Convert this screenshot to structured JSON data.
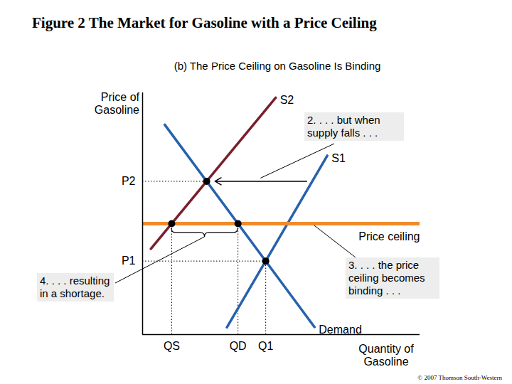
{
  "chart_data": {
    "type": "line",
    "title": "Figure 2 The Market for Gasoline with a Price Ceiling",
    "subtitle": "(b) The Price Ceiling on Gasoline Is Binding",
    "xlabel": "Quantity of Gasoline",
    "ylabel": "Price of Gasoline",
    "xlim": [
      0,
      100
    ],
    "ylim": [
      0,
      100
    ],
    "xticks": [
      {
        "value": 10.5,
        "label": "QS"
      },
      {
        "value": 34.4,
        "label": "QD"
      },
      {
        "value": 44.4,
        "label": "Q1"
      }
    ],
    "yticks": [
      {
        "value": 30.4,
        "label": "P1"
      },
      {
        "value": 63.4,
        "label": "P2"
      }
    ],
    "grid": false,
    "series": [
      {
        "name": "S2",
        "color": "#7a1f2b",
        "x": [
          3,
          48
        ],
        "values": [
          35.5,
          98
        ]
      },
      {
        "name": "S1",
        "color": "#2662ad",
        "x": [
          30.4,
          66.6
        ],
        "values": [
          3,
          74
        ]
      },
      {
        "name": "Demand",
        "color": "#2662ad",
        "x": [
          8,
          62
        ],
        "values": [
          86.8,
          3.1
        ]
      },
      {
        "name": "Price ceiling",
        "color": "#f08a2a",
        "x": [
          0,
          100
        ],
        "values": [
          45.9,
          45.9
        ]
      }
    ],
    "points": {
      "x": [
        23.1,
        10.5,
        34.4,
        44.4
      ],
      "values": [
        63.4,
        45.9,
        45.9,
        30.4
      ]
    },
    "annotations": [
      "2. . . . but when supply falls . . .",
      "3. . . . the price ceiling becomes binding . . .",
      "4. . . . resulting in a shortage."
    ],
    "source": "© 2007 Thomson South-Western"
  }
}
